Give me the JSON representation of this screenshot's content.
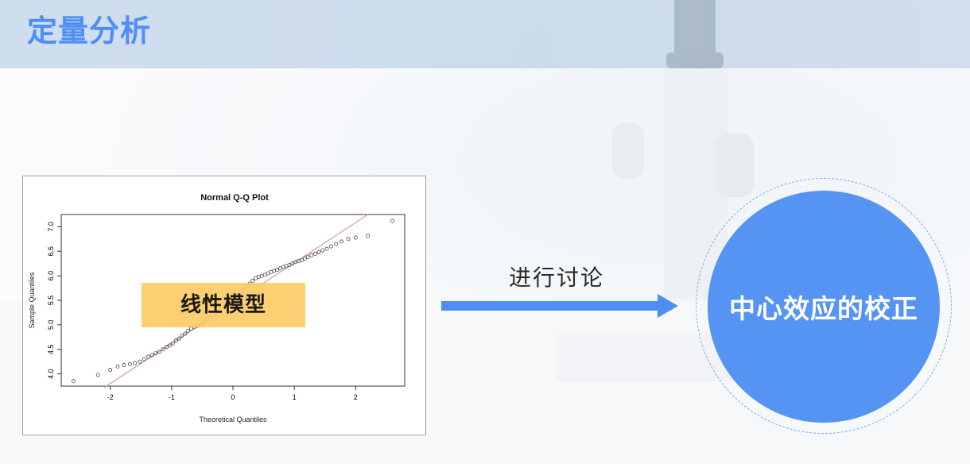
{
  "page": {
    "title": "定量分析"
  },
  "chart_data": {
    "type": "scatter",
    "title": "Normal Q-Q Plot",
    "xlabel": "Theoretical Quantiles",
    "ylabel": "Sample Quantiles",
    "xlim": [
      -2.8,
      2.8
    ],
    "ylim": [
      3.75,
      7.25
    ],
    "xticks": [
      -2,
      -1,
      0,
      1,
      2
    ],
    "yticks": [
      4.0,
      4.5,
      5.0,
      5.5,
      6.0,
      6.5,
      7.0
    ],
    "ytick_labels": [
      "4.0",
      "4.5",
      "5.0",
      "5.5",
      "6.0",
      "6.5",
      "7.0"
    ],
    "reference_line": {
      "x": [
        -2.1,
        2.2
      ],
      "y": [
        3.72,
        7.25
      ],
      "color": "#d9a3a3"
    },
    "points": {
      "x": [
        -2.6,
        -2.2,
        -2.0,
        -1.88,
        -1.78,
        -1.68,
        -1.6,
        -1.52,
        -1.45,
        -1.38,
        -1.32,
        -1.26,
        -1.2,
        -1.14,
        -1.08,
        -1.03,
        -0.98,
        -0.93,
        -0.88,
        -0.83,
        -0.78,
        -0.73,
        -0.68,
        -0.63,
        -0.58,
        -0.53,
        -0.48,
        -0.43,
        -0.38,
        -0.33,
        -0.28,
        -0.23,
        -0.18,
        -0.13,
        -0.08,
        -0.03,
        0.02,
        0.07,
        0.12,
        0.17,
        0.22,
        0.27,
        0.32,
        0.37,
        0.42,
        0.47,
        0.52,
        0.57,
        0.62,
        0.67,
        0.72,
        0.77,
        0.82,
        0.87,
        0.92,
        0.97,
        1.02,
        1.07,
        1.12,
        1.17,
        1.22,
        1.28,
        1.34,
        1.4,
        1.46,
        1.53,
        1.6,
        1.68,
        1.77,
        1.88,
        2.0,
        2.2,
        2.6
      ],
      "y": [
        3.85,
        3.98,
        4.08,
        4.15,
        4.18,
        4.2,
        4.22,
        4.25,
        4.3,
        4.35,
        4.38,
        4.42,
        4.45,
        4.5,
        4.55,
        4.58,
        4.62,
        4.68,
        4.72,
        4.78,
        4.82,
        4.88,
        4.92,
        4.95,
        4.98,
        5.0,
        5.05,
        5.1,
        5.15,
        5.18,
        5.22,
        5.28,
        5.32,
        5.38,
        5.42,
        5.48,
        5.55,
        5.6,
        5.66,
        5.72,
        5.78,
        5.84,
        5.9,
        5.95,
        5.98,
        6.0,
        6.02,
        6.05,
        6.08,
        6.1,
        6.12,
        6.15,
        6.18,
        6.2,
        6.22,
        6.25,
        6.28,
        6.3,
        6.32,
        6.35,
        6.38,
        6.42,
        6.45,
        6.48,
        6.52,
        6.55,
        6.6,
        6.65,
        6.7,
        6.75,
        6.78,
        6.82,
        7.12
      ]
    }
  },
  "overlay": {
    "model_label": "线性模型"
  },
  "flow": {
    "discuss_label": "进行讨论",
    "arrow_color": "#4f8ef5"
  },
  "result": {
    "label": "中心效应的校正",
    "color": "#5694f4"
  }
}
